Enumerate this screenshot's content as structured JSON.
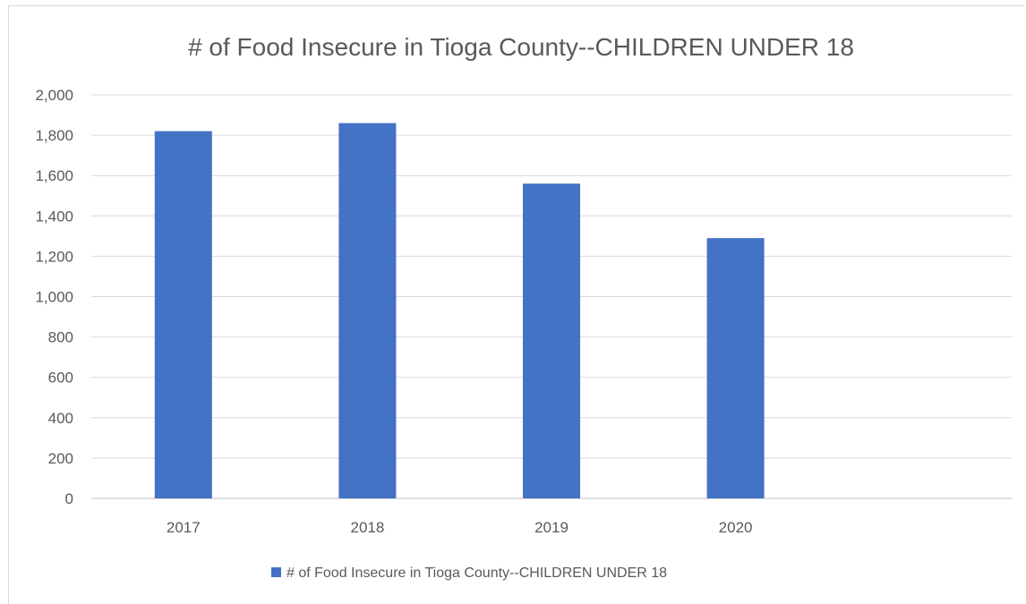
{
  "chart_data": {
    "type": "bar",
    "title": "# of Food Insecure in Tioga County--CHILDREN UNDER 18",
    "categories": [
      "2017",
      "2018",
      "2019",
      "2020",
      ""
    ],
    "series": [
      {
        "name": "# of Food Insecure in Tioga County--CHILDREN UNDER 18",
        "values": [
          1820,
          1860,
          1560,
          1290,
          null
        ],
        "color": "#4472C4"
      }
    ],
    "y_ticks": [
      "0",
      "200",
      "400",
      "600",
      "800",
      "1,000",
      "1,200",
      "1,400",
      "1,600",
      "1,800",
      "2,000"
    ],
    "ylim": [
      0,
      2000
    ],
    "grid": true,
    "legend_position": "bottom",
    "xlabel": "",
    "ylabel": ""
  }
}
